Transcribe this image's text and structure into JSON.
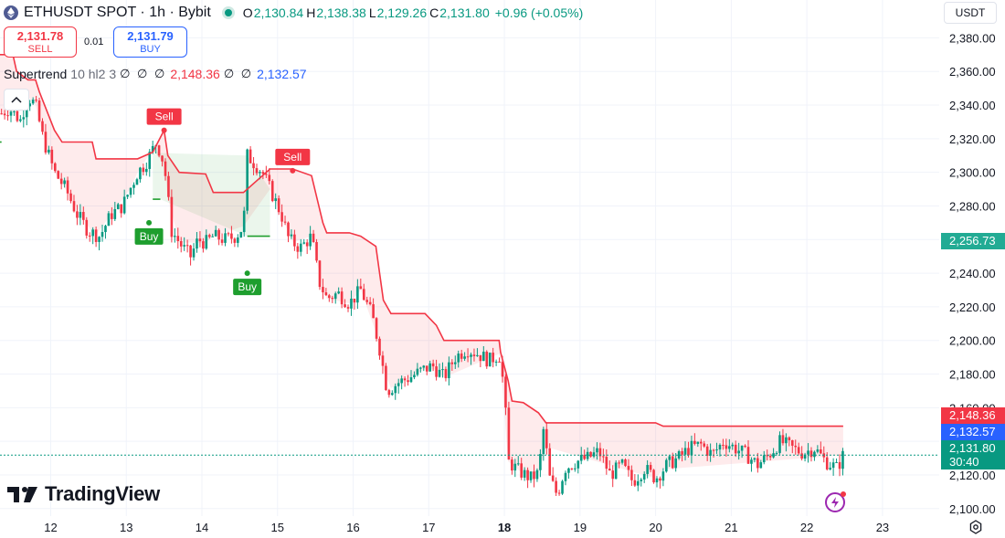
{
  "header": {
    "symbol": "ETHUSDT SPOT · 1h · Bybit",
    "open_label": "O",
    "open": "2,130.84",
    "high_label": "H",
    "high": "2,138.38",
    "low_label": "L",
    "low": "2,129.26",
    "close_label": "C",
    "close": "2,131.80",
    "change": "+0.96 (+0.05%)"
  },
  "trade": {
    "sell_price": "2,131.78",
    "sell_label": "SELL",
    "spread": "0.01",
    "buy_price": "2,131.79",
    "buy_label": "BUY"
  },
  "indicator": {
    "name": "Supertrend",
    "params": "10 hl2 3",
    "icons1": "∅ ∅ ∅",
    "value_red": "2,148.36",
    "icons2": "∅ ∅",
    "value_blue": "2,132.57"
  },
  "currency": "USDT",
  "price_tags": {
    "tag1": "2,256.73",
    "tag2": "2,148.36",
    "tag3": "2,132.57",
    "current": "2,131.80",
    "countdown": "30:40"
  },
  "brand": "TradingView",
  "colors": {
    "up": "#089981",
    "down": "#f23645",
    "supertrend_down": "#f23645",
    "supertrend_up": "#1e9e2e",
    "accent_blue": "#2962ff",
    "tag_green": "#22ab94"
  },
  "chart_data": {
    "type": "candlestick",
    "symbol": "ETHUSDT",
    "interval": "1h",
    "ylim": [
      2095,
      2390
    ],
    "y_ticks": [
      2100,
      2120,
      2140,
      2160,
      2180,
      2200,
      2220,
      2240,
      2260,
      2280,
      2300,
      2320,
      2340,
      2360,
      2380
    ],
    "y_tick_labels": [
      "2,100.00",
      "2,120.00",
      "2,140.00",
      "2,160.00",
      "2,180.00",
      "2,200.00",
      "2,220.00",
      "2,240.00",
      "2,260.00",
      "2,280.00",
      "2,300.00",
      "2,320.00",
      "2,340.00",
      "2,360.00",
      "2,380.00"
    ],
    "x_ticks": [
      12,
      13,
      14,
      15,
      16,
      17,
      18,
      19,
      20,
      21,
      22,
      23
    ],
    "x_tick_labels": [
      "12",
      "13",
      "14",
      "15",
      "16",
      "17",
      "18",
      "19",
      "20",
      "21",
      "22",
      "23"
    ],
    "x_range": [
      11.33,
      23.75
    ],
    "close_path": [
      [
        11.35,
        2335
      ],
      [
        11.45,
        2338
      ],
      [
        11.6,
        2331
      ],
      [
        11.7,
        2345
      ],
      [
        11.8,
        2340
      ],
      [
        11.9,
        2320
      ],
      [
        12.05,
        2300
      ],
      [
        12.2,
        2290
      ],
      [
        12.35,
        2275
      ],
      [
        12.5,
        2265
      ],
      [
        12.65,
        2262
      ],
      [
        12.8,
        2275
      ],
      [
        12.95,
        2280
      ],
      [
        13.05,
        2290
      ],
      [
        13.15,
        2300
      ],
      [
        13.25,
        2305
      ],
      [
        13.4,
        2318
      ],
      [
        13.5,
        2305
      ],
      [
        13.6,
        2265
      ],
      [
        13.75,
        2255
      ],
      [
        13.85,
        2250
      ],
      [
        13.95,
        2260
      ],
      [
        14.05,
        2258
      ],
      [
        14.15,
        2262
      ],
      [
        14.3,
        2260
      ],
      [
        14.45,
        2262
      ],
      [
        14.55,
        2268
      ],
      [
        14.6,
        2310
      ],
      [
        14.68,
        2306
      ],
      [
        14.8,
        2300
      ],
      [
        14.95,
        2285
      ],
      [
        15.05,
        2275
      ],
      [
        15.15,
        2260
      ],
      [
        15.3,
        2255
      ],
      [
        15.45,
        2262
      ],
      [
        15.55,
        2235
      ],
      [
        15.65,
        2225
      ],
      [
        15.8,
        2228
      ],
      [
        15.95,
        2222
      ],
      [
        16.1,
        2230
      ],
      [
        16.25,
        2215
      ],
      [
        16.35,
        2195
      ],
      [
        16.45,
        2170
      ],
      [
        16.6,
        2175
      ],
      [
        16.75,
        2178
      ],
      [
        16.9,
        2182
      ],
      [
        17.05,
        2185
      ],
      [
        17.2,
        2178
      ],
      [
        17.35,
        2190
      ],
      [
        17.5,
        2195
      ],
      [
        17.65,
        2192
      ],
      [
        17.8,
        2188
      ],
      [
        17.93,
        2192
      ],
      [
        18.0,
        2170
      ],
      [
        18.05,
        2128
      ],
      [
        18.2,
        2122
      ],
      [
        18.35,
        2118
      ],
      [
        18.45,
        2121
      ],
      [
        18.52,
        2148
      ],
      [
        18.6,
        2118
      ],
      [
        18.7,
        2108
      ],
      [
        18.8,
        2124
      ],
      [
        18.95,
        2128
      ],
      [
        19.1,
        2130
      ],
      [
        19.25,
        2134
      ],
      [
        19.4,
        2120
      ],
      [
        19.55,
        2126
      ],
      [
        19.7,
        2116
      ],
      [
        19.85,
        2124
      ],
      [
        20.0,
        2118
      ],
      [
        20.15,
        2126
      ],
      [
        20.3,
        2130
      ],
      [
        20.45,
        2136
      ],
      [
        20.6,
        2138
      ],
      [
        20.75,
        2132
      ],
      [
        20.9,
        2140
      ],
      [
        21.05,
        2136
      ],
      [
        21.2,
        2132
      ],
      [
        21.35,
        2126
      ],
      [
        21.5,
        2132
      ],
      [
        21.65,
        2140
      ],
      [
        21.8,
        2136
      ],
      [
        21.95,
        2133
      ],
      [
        22.1,
        2136
      ],
      [
        22.25,
        2128
      ],
      [
        22.4,
        2124
      ],
      [
        22.48,
        2131.8
      ]
    ],
    "supertrend_down": [
      [
        11.33,
        2370
      ],
      [
        11.5,
        2370
      ],
      [
        11.55,
        2360
      ],
      [
        11.7,
        2355
      ],
      [
        11.8,
        2355
      ],
      [
        11.85,
        2348
      ],
      [
        12.05,
        2325
      ],
      [
        12.15,
        2318
      ],
      [
        12.55,
        2318
      ],
      [
        12.6,
        2308
      ],
      [
        13.05,
        2308
      ],
      [
        13.15,
        2308
      ],
      [
        13.35,
        2312
      ],
      [
        13.5,
        2325
      ],
      [
        13.55,
        2310
      ],
      [
        13.7,
        2300
      ],
      [
        14.05,
        2299
      ],
      [
        14.15,
        2288
      ],
      [
        14.55,
        2288
      ],
      [
        14.9,
        2302
      ],
      [
        15.2,
        2302
      ],
      [
        15.45,
        2298
      ],
      [
        15.6,
        2270
      ],
      [
        15.65,
        2264
      ],
      [
        15.95,
        2264
      ],
      [
        16.1,
        2262
      ],
      [
        16.3,
        2256
      ],
      [
        16.4,
        2224
      ],
      [
        16.5,
        2216
      ],
      [
        16.95,
        2216
      ],
      [
        17.1,
        2209
      ],
      [
        17.2,
        2200
      ],
      [
        17.93,
        2200
      ],
      [
        17.95,
        2193
      ],
      [
        18.05,
        2176
      ],
      [
        18.1,
        2164
      ],
      [
        18.25,
        2163
      ],
      [
        18.45,
        2157
      ],
      [
        18.55,
        2151
      ],
      [
        20.0,
        2151
      ],
      [
        20.1,
        2149
      ],
      [
        22.48,
        2149
      ]
    ],
    "supertrend_up": [
      [
        11.33,
        2318
      ],
      [
        11.35,
        2318
      ],
      [
        13.35,
        2284
      ],
      [
        13.45,
        2284
      ],
      [
        14.6,
        2262
      ],
      [
        14.9,
        2262
      ]
    ],
    "signals": [
      {
        "type": "Sell",
        "x": 13.5,
        "y": 2325
      },
      {
        "type": "Buy",
        "x": 13.3,
        "y": 2270
      },
      {
        "type": "Buy",
        "x": 14.6,
        "y": 2240
      },
      {
        "type": "Sell",
        "x": 15.2,
        "y": 2301
      }
    ]
  }
}
